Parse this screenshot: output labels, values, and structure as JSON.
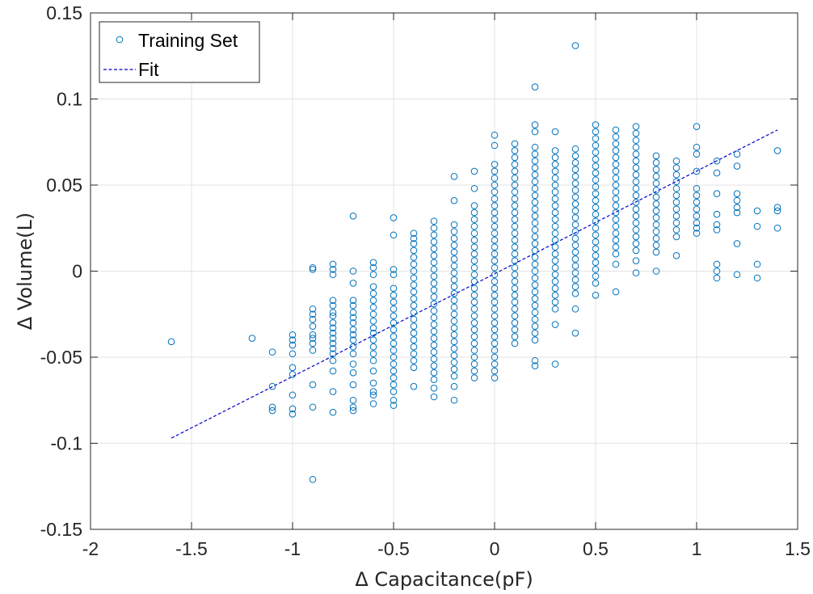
{
  "chart_data": {
    "type": "scatter",
    "xlabel": "Δ Capacitance(pF)",
    "ylabel": "Δ Volume(L)",
    "xlim": [
      -2,
      1.5
    ],
    "ylim": [
      -0.15,
      0.15
    ],
    "xticks": [
      -2,
      -1.5,
      -1,
      -0.5,
      0,
      0.5,
      1,
      1.5
    ],
    "xtick_labels": [
      "-2",
      "-1.5",
      "-1",
      "-0.5",
      "0",
      "0.5",
      "1",
      "1.5"
    ],
    "yticks": [
      -0.15,
      -0.1,
      -0.05,
      0,
      0.05,
      0.1,
      0.15
    ],
    "ytick_labels": [
      "-0.15",
      "-0.1",
      "-0.05",
      "0",
      "0.05",
      "0.1",
      "0.15"
    ],
    "grid": true,
    "legend_position": "top-left",
    "colors": {
      "scatter": "#0072BD",
      "fit": "#0000CC"
    },
    "series": [
      {
        "name": "Training Set",
        "type": "scatter",
        "marker": "open-circle",
        "columns": [
          {
            "x": -1.6,
            "y": [
              -0.041
            ]
          },
          {
            "x": -1.2,
            "y": [
              -0.039
            ]
          },
          {
            "x": -1.1,
            "y": [
              -0.047,
              -0.067,
              -0.079,
              -0.081
            ]
          },
          {
            "x": -1.0,
            "y": [
              -0.037,
              -0.04,
              -0.043,
              -0.048,
              -0.056,
              -0.06,
              -0.072,
              -0.08,
              -0.083
            ]
          },
          {
            "x": -0.9,
            "y": [
              0.002,
              0.001,
              -0.022,
              -0.025,
              -0.028,
              -0.032,
              -0.037,
              -0.039,
              -0.042,
              -0.046,
              -0.066,
              -0.079,
              -0.121
            ]
          },
          {
            "x": -0.8,
            "y": [
              0.004,
              0.001,
              -0.002,
              -0.017,
              -0.02,
              -0.024,
              -0.026,
              -0.03,
              -0.033,
              -0.036,
              -0.039,
              -0.042,
              -0.045,
              -0.048,
              -0.052,
              -0.058,
              -0.07,
              -0.082
            ]
          },
          {
            "x": -0.7,
            "y": [
              0.032,
              0.0,
              -0.007,
              -0.017,
              -0.02,
              -0.024,
              -0.027,
              -0.03,
              -0.034,
              -0.037,
              -0.04,
              -0.044,
              -0.048,
              -0.054,
              -0.059,
              -0.066,
              -0.075,
              -0.079,
              -0.081
            ]
          },
          {
            "x": -0.6,
            "y": [
              0.005,
              0.002,
              -0.002,
              -0.009,
              -0.013,
              -0.017,
              -0.021,
              -0.025,
              -0.029,
              -0.033,
              -0.036,
              -0.04,
              -0.044,
              -0.048,
              -0.052,
              -0.058,
              -0.065,
              -0.07,
              -0.072,
              -0.077
            ]
          },
          {
            "x": -0.5,
            "y": [
              0.031,
              0.021,
              0.001,
              -0.002,
              -0.01,
              -0.014,
              -0.018,
              -0.022,
              -0.026,
              -0.03,
              -0.034,
              -0.038,
              -0.042,
              -0.046,
              -0.05,
              -0.054,
              -0.058,
              -0.062,
              -0.066,
              -0.07,
              -0.075,
              -0.078
            ]
          },
          {
            "x": -0.4,
            "y": [
              0.022,
              0.019,
              0.016,
              0.012,
              0.008,
              0.004,
              0.0,
              -0.004,
              -0.008,
              -0.012,
              -0.016,
              -0.02,
              -0.024,
              -0.028,
              -0.032,
              -0.036,
              -0.04,
              -0.044,
              -0.048,
              -0.052,
              -0.056,
              -0.067
            ]
          },
          {
            "x": -0.3,
            "y": [
              0.029,
              0.025,
              0.021,
              0.017,
              0.013,
              0.009,
              0.005,
              0.001,
              -0.003,
              -0.007,
              -0.011,
              -0.015,
              -0.019,
              -0.023,
              -0.027,
              -0.031,
              -0.035,
              -0.039,
              -0.043,
              -0.047,
              -0.051,
              -0.055,
              -0.059,
              -0.063,
              -0.068,
              -0.073
            ]
          },
          {
            "x": -0.2,
            "y": [
              0.055,
              0.041,
              0.027,
              0.023,
              0.019,
              0.015,
              0.011,
              0.007,
              0.003,
              -0.001,
              -0.005,
              -0.009,
              -0.013,
              -0.017,
              -0.021,
              -0.025,
              -0.029,
              -0.033,
              -0.037,
              -0.041,
              -0.045,
              -0.049,
              -0.053,
              -0.057,
              -0.061,
              -0.067,
              -0.075
            ]
          },
          {
            "x": -0.1,
            "y": [
              0.058,
              0.048,
              0.038,
              0.034,
              0.03,
              0.026,
              0.022,
              0.018,
              0.014,
              0.01,
              0.006,
              0.002,
              -0.002,
              -0.006,
              -0.01,
              -0.014,
              -0.018,
              -0.022,
              -0.026,
              -0.03,
              -0.034,
              -0.038,
              -0.042,
              -0.046,
              -0.05,
              -0.054,
              -0.058,
              -0.062
            ]
          },
          {
            "x": 0.0,
            "y": [
              0.079,
              0.073,
              0.062,
              0.058,
              0.054,
              0.05,
              0.046,
              0.042,
              0.038,
              0.034,
              0.03,
              0.026,
              0.022,
              0.018,
              0.014,
              0.01,
              0.006,
              0.002,
              -0.002,
              -0.006,
              -0.01,
              -0.014,
              -0.018,
              -0.022,
              -0.026,
              -0.03,
              -0.034,
              -0.038,
              -0.042,
              -0.046,
              -0.05,
              -0.054,
              -0.058,
              -0.062
            ]
          },
          {
            "x": 0.1,
            "y": [
              0.074,
              0.07,
              0.066,
              0.062,
              0.058,
              0.054,
              0.05,
              0.046,
              0.042,
              0.038,
              0.034,
              0.03,
              0.026,
              0.022,
              0.018,
              0.014,
              0.01,
              0.006,
              0.002,
              -0.002,
              -0.006,
              -0.01,
              -0.014,
              -0.018,
              -0.022,
              -0.026,
              -0.03,
              -0.034,
              -0.038,
              -0.042
            ]
          },
          {
            "x": 0.2,
            "y": [
              0.107,
              0.085,
              0.081,
              0.072,
              0.068,
              0.064,
              0.06,
              0.056,
              0.052,
              0.048,
              0.044,
              0.04,
              0.036,
              0.032,
              0.028,
              0.024,
              0.02,
              0.016,
              0.012,
              0.008,
              0.004,
              0.0,
              -0.004,
              -0.008,
              -0.012,
              -0.016,
              -0.02,
              -0.024,
              -0.028,
              -0.032,
              -0.036,
              -0.04,
              -0.052,
              -0.055
            ]
          },
          {
            "x": 0.3,
            "y": [
              0.081,
              0.07,
              0.066,
              0.062,
              0.058,
              0.054,
              0.05,
              0.046,
              0.042,
              0.038,
              0.034,
              0.03,
              0.026,
              0.022,
              0.018,
              0.014,
              0.01,
              0.006,
              0.002,
              -0.002,
              -0.006,
              -0.01,
              -0.014,
              -0.018,
              -0.022,
              -0.031,
              -0.054
            ]
          },
          {
            "x": 0.4,
            "y": [
              0.131,
              0.071,
              0.067,
              0.063,
              0.059,
              0.055,
              0.051,
              0.047,
              0.043,
              0.039,
              0.035,
              0.031,
              0.027,
              0.023,
              0.019,
              0.015,
              0.011,
              0.007,
              0.003,
              -0.001,
              -0.005,
              -0.009,
              -0.013,
              -0.022,
              -0.036
            ]
          },
          {
            "x": 0.5,
            "y": [
              0.085,
              0.081,
              0.077,
              0.073,
              0.069,
              0.065,
              0.061,
              0.057,
              0.053,
              0.049,
              0.045,
              0.041,
              0.037,
              0.033,
              0.029,
              0.025,
              0.021,
              0.017,
              0.013,
              0.009,
              0.005,
              0.001,
              -0.003,
              -0.007,
              -0.014
            ]
          },
          {
            "x": 0.6,
            "y": [
              0.082,
              0.078,
              0.074,
              0.07,
              0.066,
              0.062,
              0.058,
              0.054,
              0.05,
              0.046,
              0.042,
              0.038,
              0.034,
              0.03,
              0.026,
              0.022,
              0.018,
              0.014,
              0.01,
              0.004,
              -0.012
            ]
          },
          {
            "x": 0.7,
            "y": [
              0.084,
              0.08,
              0.076,
              0.072,
              0.068,
              0.064,
              0.06,
              0.056,
              0.052,
              0.048,
              0.044,
              0.04,
              0.036,
              0.032,
              0.028,
              0.024,
              0.02,
              0.016,
              0.012,
              0.006,
              -0.001
            ]
          },
          {
            "x": 0.8,
            "y": [
              0.067,
              0.063,
              0.059,
              0.055,
              0.051,
              0.047,
              0.043,
              0.039,
              0.035,
              0.031,
              0.027,
              0.023,
              0.019,
              0.015,
              0.011,
              0.0
            ]
          },
          {
            "x": 0.9,
            "y": [
              0.064,
              0.06,
              0.056,
              0.052,
              0.048,
              0.044,
              0.04,
              0.036,
              0.032,
              0.028,
              0.024,
              0.02,
              0.009
            ]
          },
          {
            "x": 1.0,
            "y": [
              0.084,
              0.072,
              0.068,
              0.058,
              0.048,
              0.044,
              0.04,
              0.036,
              0.032,
              0.028,
              0.025,
              0.022
            ]
          },
          {
            "x": 1.1,
            "y": [
              0.064,
              0.057,
              0.045,
              0.033,
              0.027,
              0.024,
              0.004,
              0.0,
              -0.004
            ]
          },
          {
            "x": 1.2,
            "y": [
              0.068,
              0.061,
              0.045,
              0.041,
              0.037,
              0.034,
              0.016,
              -0.002
            ]
          },
          {
            "x": 1.3,
            "y": [
              0.035,
              0.026,
              0.004,
              -0.004
            ]
          },
          {
            "x": 1.4,
            "y": [
              0.07,
              0.037,
              0.035,
              0.025
            ]
          }
        ]
      },
      {
        "name": "Fit",
        "type": "line",
        "style": "dashed",
        "x": [
          -1.6,
          1.4
        ],
        "y": [
          -0.097,
          0.082
        ]
      }
    ]
  }
}
